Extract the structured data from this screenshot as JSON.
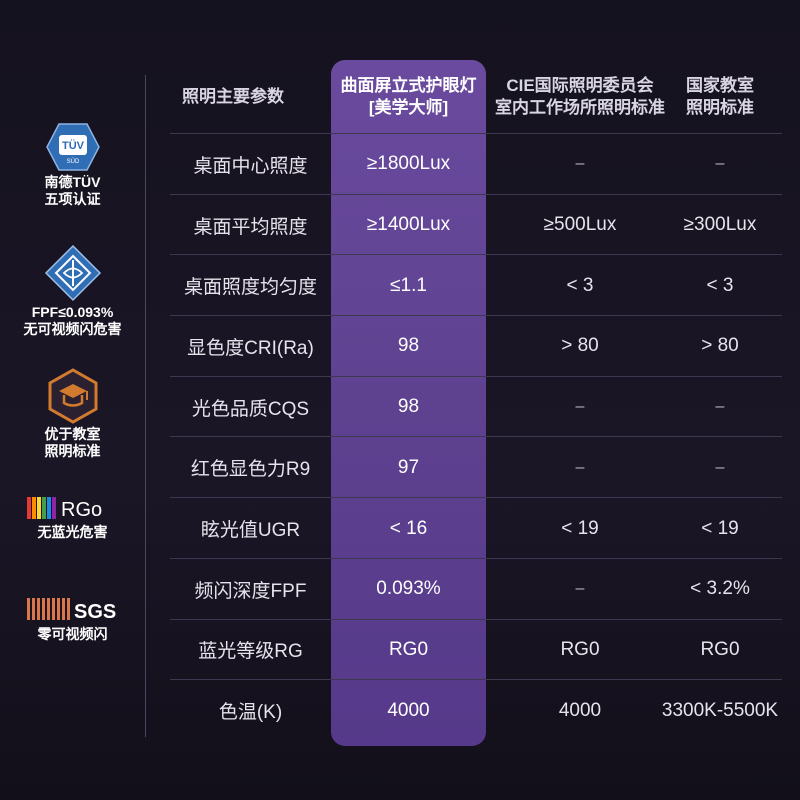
{
  "badges": [
    {
      "icon": "tuv-sud-icon",
      "line1": "南德TÜV",
      "line2": "五项认证",
      "logo_text": "TÜV",
      "logo_sub": "SÜD",
      "color": "#2f6db5"
    },
    {
      "icon": "fpf-diamond-icon",
      "line1": "FPF≤0.093%",
      "line2": "无可视频闪危害",
      "color": "#2f6db5"
    },
    {
      "icon": "classroom-hexagon-icon",
      "line1": "优于教室",
      "line2": "照明标准",
      "color": "#d27a2e"
    },
    {
      "icon": "rg0-logo-icon",
      "line1": "无蓝光危害",
      "logo_text": "RGo"
    },
    {
      "icon": "sgs-logo-icon",
      "line1": "零可视频闪",
      "logo_text": "SGS"
    }
  ],
  "table": {
    "headers": [
      [
        "照明主要参数"
      ],
      [
        "曲面屏立式护眼灯",
        "[美学大师]"
      ],
      [
        "CIE国际照明委员会",
        "室内工作场所照明标准"
      ],
      [
        "国家教室",
        "照明标准"
      ]
    ],
    "rows": [
      [
        "桌面中心照度",
        "≥1800Lux",
        "–",
        "–"
      ],
      [
        "桌面平均照度",
        "≥1400Lux",
        "≥500Lux",
        "≥300Lux"
      ],
      [
        "桌面照度均匀度",
        "≤1.1",
        "< 3",
        "< 3"
      ],
      [
        "显色度CRI(Ra)",
        "98",
        "> 80",
        "> 80"
      ],
      [
        "光色品质CQS",
        "98",
        "–",
        "–"
      ],
      [
        "红色显色力R9",
        "97",
        "–",
        "–"
      ],
      [
        "眩光值UGR",
        "< 16",
        "< 19",
        "< 19"
      ],
      [
        "频闪深度FPF",
        "0.093%",
        "–",
        "< 3.2%"
      ],
      [
        "蓝光等级RG",
        "RG0",
        "RG0",
        "RG0"
      ],
      [
        "色温(K)",
        "4000",
        "4000",
        "3300K-5500K"
      ]
    ]
  },
  "colors": {
    "highlight": "#5e4290",
    "background": "#17131f",
    "accent_orange": "#d27a2e",
    "accent_blue": "#2f6db5"
  }
}
